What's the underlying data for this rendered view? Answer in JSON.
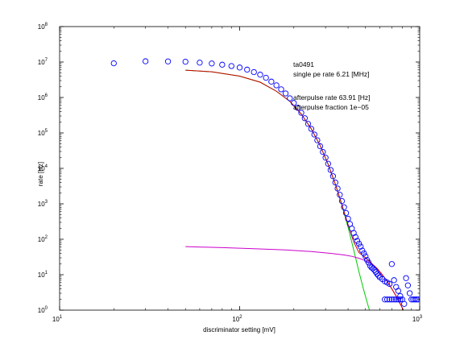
{
  "chart_data": {
    "type": "scatter",
    "xlabel": "discriminator setting [mV]",
    "ylabel": "rate [Hz]",
    "xscale": "log",
    "yscale": "log",
    "xlim": [
      10,
      1000
    ],
    "ylim": [
      1,
      100000000
    ],
    "grid": false,
    "x_ticks": [
      {
        "value": 10,
        "base": "10",
        "exp": "1"
      },
      {
        "value": 100,
        "base": "10",
        "exp": "2"
      },
      {
        "value": 1000,
        "base": "10",
        "exp": "3"
      }
    ],
    "y_ticks": [
      {
        "value": 1,
        "base": "10",
        "exp": "0"
      },
      {
        "value": 10,
        "base": "10",
        "exp": "1"
      },
      {
        "value": 100,
        "base": "10",
        "exp": "2"
      },
      {
        "value": 1000,
        "base": "10",
        "exp": "3"
      },
      {
        "value": 10000,
        "base": "10",
        "exp": "4"
      },
      {
        "value": 100000,
        "base": "10",
        "exp": "5"
      },
      {
        "value": 1000000,
        "base": "10",
        "exp": "6"
      },
      {
        "value": 10000000,
        "base": "10",
        "exp": "7"
      },
      {
        "value": 100000000,
        "base": "10",
        "exp": "8"
      }
    ],
    "annotations": [
      "ta0491",
      "single pe rate 6.21 [MHz]",
      "afterpulse rate 63.91 [Hz]",
      "afterpulse fraction 1e−05"
    ],
    "series": [
      {
        "kind": "markers",
        "color": "#0000ff",
        "points": [
          [
            20,
            9200000
          ],
          [
            30,
            10500000
          ],
          [
            40,
            10400000
          ],
          [
            50,
            10200000
          ],
          [
            60,
            9600000
          ],
          [
            70,
            9100000
          ],
          [
            80,
            8400000
          ],
          [
            90,
            7700000
          ],
          [
            100,
            7000000
          ],
          [
            110,
            6100000
          ],
          [
            120,
            5200000
          ],
          [
            130,
            4400000
          ],
          [
            140,
            3600000
          ],
          [
            150,
            2800000
          ],
          [
            160,
            2200000
          ],
          [
            170,
            1700000
          ],
          [
            180,
            1300000
          ],
          [
            190,
            950000
          ],
          [
            200,
            700000
          ],
          [
            210,
            510000
          ],
          [
            220,
            370000
          ],
          [
            230,
            260000
          ],
          [
            240,
            180000
          ],
          [
            250,
            130000
          ],
          [
            260,
            90000
          ],
          [
            270,
            62000
          ],
          [
            280,
            42000
          ],
          [
            290,
            29000
          ],
          [
            300,
            20000
          ],
          [
            310,
            13500
          ],
          [
            320,
            9000
          ],
          [
            330,
            6000
          ],
          [
            340,
            4000
          ],
          [
            350,
            2700
          ],
          [
            360,
            1800
          ],
          [
            370,
            1200
          ],
          [
            380,
            800
          ],
          [
            390,
            550
          ],
          [
            400,
            380
          ],
          [
            410,
            270
          ],
          [
            420,
            200
          ],
          [
            430,
            150
          ],
          [
            440,
            115
          ],
          [
            450,
            90
          ],
          [
            460,
            75
          ],
          [
            470,
            62
          ],
          [
            480,
            48
          ],
          [
            490,
            40
          ],
          [
            500,
            33
          ],
          [
            510,
            26
          ],
          [
            520,
            22
          ],
          [
            530,
            18
          ],
          [
            540,
            16
          ],
          [
            550,
            15
          ],
          [
            560,
            13.5
          ],
          [
            570,
            12
          ],
          [
            580,
            10.5
          ],
          [
            590,
            9.5
          ],
          [
            600,
            8.5
          ],
          [
            620,
            7.5
          ],
          [
            640,
            6.5
          ],
          [
            660,
            6
          ],
          [
            680,
            5.5
          ],
          [
            700,
            20
          ],
          [
            720,
            7
          ],
          [
            740,
            4.5
          ],
          [
            760,
            3.5
          ],
          [
            780,
            2.5
          ],
          [
            800,
            2
          ],
          [
            820,
            1.5
          ],
          [
            840,
            8
          ],
          [
            860,
            5
          ],
          [
            880,
            3
          ],
          [
            900,
            2
          ],
          [
            920,
            2
          ],
          [
            940,
            2
          ],
          [
            960,
            2
          ],
          [
            980,
            2
          ],
          [
            640,
            2
          ],
          [
            660,
            2
          ],
          [
            680,
            2
          ],
          [
            700,
            2
          ],
          [
            720,
            2
          ],
          [
            740,
            2
          ],
          [
            760,
            2
          ],
          [
            780,
            2
          ]
        ]
      },
      {
        "kind": "line",
        "color": "#00cc00",
        "points": [
          [
            50,
            5900000
          ],
          [
            70,
            5300000
          ],
          [
            100,
            4000000
          ],
          [
            130,
            2700000
          ],
          [
            160,
            1500000
          ],
          [
            190,
            780000
          ],
          [
            220,
            340000
          ],
          [
            250,
            130000
          ],
          [
            280,
            44000
          ],
          [
            310,
            13000
          ],
          [
            340,
            3600
          ],
          [
            370,
            900
          ],
          [
            400,
            220
          ],
          [
            430,
            50
          ],
          [
            460,
            12
          ],
          [
            490,
            3.5
          ],
          [
            520,
            1.2
          ],
          [
            530,
            0.9
          ]
        ]
      },
      {
        "kind": "line",
        "color": "#cc00cc",
        "points": [
          [
            50,
            62
          ],
          [
            80,
            58
          ],
          [
            120,
            54
          ],
          [
            180,
            50
          ],
          [
            250,
            45
          ],
          [
            320,
            40
          ],
          [
            380,
            36
          ],
          [
            420,
            33
          ],
          [
            460,
            29
          ],
          [
            500,
            25
          ],
          [
            540,
            20
          ],
          [
            580,
            15
          ],
          [
            620,
            10
          ],
          [
            660,
            6.5
          ],
          [
            700,
            4
          ],
          [
            740,
            2.5
          ],
          [
            780,
            1.5
          ],
          [
            820,
            0.9
          ]
        ]
      },
      {
        "kind": "line",
        "color": "#cc0000",
        "points": [
          [
            50,
            5900000
          ],
          [
            70,
            5300000
          ],
          [
            100,
            4000000
          ],
          [
            130,
            2700000
          ],
          [
            160,
            1500000
          ],
          [
            190,
            780000
          ],
          [
            220,
            340000
          ],
          [
            250,
            130000
          ],
          [
            280,
            44000
          ],
          [
            310,
            13000
          ],
          [
            340,
            3600
          ],
          [
            370,
            940
          ],
          [
            400,
            260
          ],
          [
            430,
            85
          ],
          [
            460,
            42
          ],
          [
            500,
            30
          ],
          [
            540,
            21
          ],
          [
            580,
            15
          ],
          [
            620,
            10
          ],
          [
            660,
            6.5
          ],
          [
            700,
            4
          ],
          [
            740,
            2.5
          ],
          [
            780,
            1.5
          ],
          [
            820,
            0.9
          ]
        ]
      }
    ]
  }
}
